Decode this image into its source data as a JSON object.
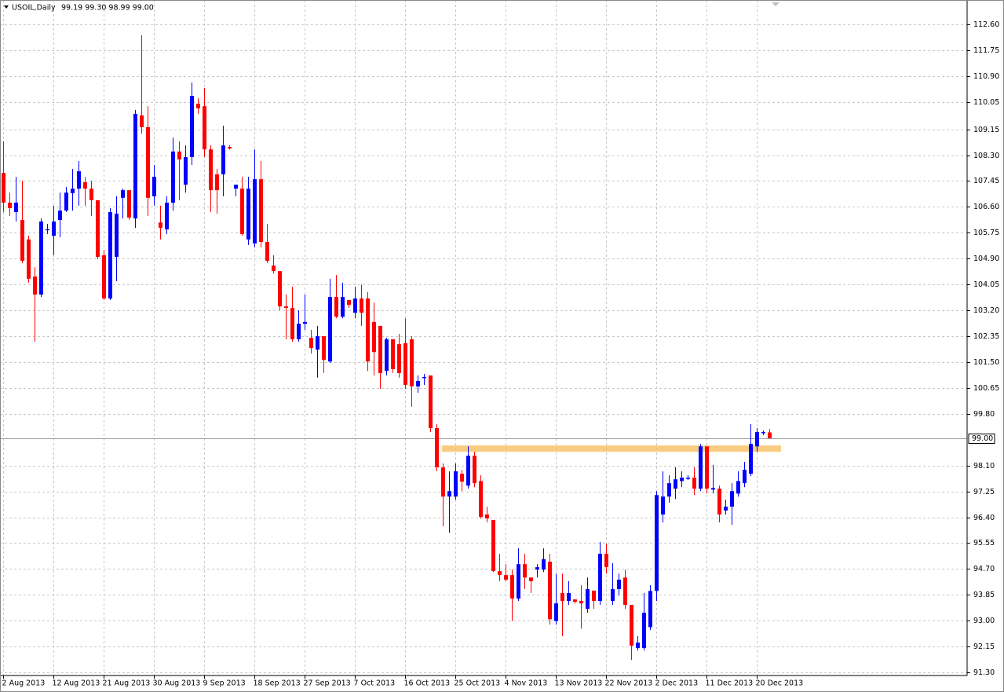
{
  "chart_data": {
    "type": "candlestick",
    "title": "USOIL,Daily",
    "ohlc_label": "99.19 99.30 98.99 99.00",
    "categories": [
      "2 Aug 2013",
      null,
      null,
      null,
      null,
      null,
      null,
      null,
      "12 Aug 2013",
      null,
      null,
      null,
      null,
      null,
      null,
      null,
      "21 Aug 2013",
      null,
      null,
      null,
      null,
      null,
      null,
      null,
      "30 Aug 2013",
      null,
      null,
      null,
      null,
      null,
      null,
      null,
      "9 Sep 2013",
      null,
      null,
      null,
      null,
      null,
      null,
      null,
      "18 Sep 2013",
      null,
      null,
      null,
      null,
      null,
      null,
      null,
      "27 Sep 2013",
      null,
      null,
      null,
      null,
      null,
      null,
      null,
      "7 Oct 2013",
      null,
      null,
      null,
      null,
      null,
      null,
      null,
      "16 Oct 2013",
      null,
      null,
      null,
      null,
      null,
      null,
      null,
      "25 Oct 2013",
      null,
      null,
      null,
      null,
      null,
      null,
      null,
      "4 Nov 2013",
      null,
      null,
      null,
      null,
      null,
      null,
      null,
      "13 Nov 2013",
      null,
      null,
      null,
      null,
      null,
      null,
      null,
      "22 Nov 2013",
      null,
      null,
      null,
      null,
      null,
      null,
      null,
      "2 Dec 2013",
      null,
      null,
      null,
      null,
      null,
      null,
      null,
      "11 Dec 2013",
      null,
      null,
      null,
      null,
      null,
      null,
      null,
      "20 Dec 2013",
      null,
      null
    ],
    "open": [
      107.72,
      106.74,
      106.43,
      106.17,
      105.53,
      104.31,
      103.72,
      105.84,
      105.65,
      106.17,
      106.48,
      107.05,
      107.2,
      107.41,
      107.2,
      106.82,
      105.01,
      103.59,
      104.96,
      106.9,
      107.15,
      106.22,
      109.61,
      109.22,
      106.95,
      106.09,
      105.86,
      106.74,
      108.42,
      107.33,
      108.24,
      109.99,
      109.91,
      108.49,
      107.67,
      107.67,
      108.57,
      107.2,
      107.2,
      105.53,
      105.4,
      107.51,
      105.45,
      104.67,
      104.49,
      103.33,
      103.28,
      102.25,
      102.76,
      102.3,
      101.91,
      102.35,
      101.52,
      103.64,
      102.99,
      103.54,
      103.12,
      103.59,
      103.59,
      102.82,
      102.69,
      101.21,
      102.25,
      102.09,
      102.12,
      102.25,
      100.7,
      100.98,
      101.06,
      99.33,
      98.04,
      97.08,
      97.08,
      97.83,
      97.44,
      98.42,
      97.59,
      96.49,
      96.31,
      94.63,
      94.5,
      94.5,
      93.73,
      94.86,
      94.42,
      94.68,
      94.68,
      94.94,
      92.99,
      93.91,
      93.65,
      93.7,
      93.65,
      93.39,
      93.99,
      93.65,
      95.2,
      93.65,
      94.04,
      94.42,
      93.52,
      92.1,
      92.1,
      92.79,
      93.98,
      96.49,
      97.08,
      97.34,
      97.59,
      97.68,
      97.7,
      97.34,
      98.73,
      97.31,
      97.34,
      96.62,
      96.75,
      97.18,
      97.52,
      97.83,
      98.73,
      99.18,
      99.19
    ],
    "high": [
      108.75,
      107.07,
      107.59,
      107.46,
      105.65,
      104.62,
      106.22,
      106.04,
      106.64,
      107.07,
      107.26,
      107.85,
      108.11,
      107.59,
      107.46,
      106.82,
      105.19,
      106.56,
      106.95,
      107.2,
      107.15,
      109.79,
      112.24,
      109.91,
      107.98,
      106.64,
      106.95,
      108.88,
      108.75,
      108.62,
      110.69,
      110.17,
      110.51,
      108.62,
      107.85,
      109.27,
      108.62,
      107.33,
      107.59,
      107.59,
      108.49,
      108.11,
      106.04,
      105.01,
      104.49,
      103.72,
      103.98,
      103.2,
      103.72,
      102.56,
      102.69,
      102.35,
      104.24,
      104.36,
      104.11,
      103.54,
      103.98,
      104.05,
      103.8,
      103.46,
      102.69,
      102.3,
      102.25,
      102.43,
      102.94,
      102.35,
      101.06,
      101.11,
      101.06,
      99.46,
      98.17,
      97.91,
      98.17,
      97.96,
      98.73,
      98.55,
      97.78,
      96.75,
      96.31,
      95.2,
      94.86,
      94.68,
      95.38,
      95.2,
      94.42,
      94.86,
      95.38,
      95.2,
      94.55,
      94.55,
      94.3,
      93.7,
      94.17,
      94.42,
      93.99,
      95.59,
      95.53,
      94.89,
      94.55,
      94.68,
      93.52,
      92.49,
      93.91,
      94.17,
      97.26,
      97.91,
      97.78,
      98.04,
      97.91,
      97.78,
      98.04,
      98.81,
      98.73,
      98.12,
      97.44,
      96.98,
      97.52,
      97.91,
      98.22,
      99.46,
      99.33,
      99.25,
      99.3
    ],
    "low": [
      106.43,
      106.3,
      106.12,
      104.75,
      104.11,
      102.17,
      103.64,
      105.71,
      105.01,
      105.6,
      106.43,
      106.48,
      106.64,
      106.64,
      106.3,
      104.88,
      103.54,
      103.54,
      104.16,
      106.22,
      106.17,
      105.91,
      109.01,
      106.3,
      106.64,
      105.53,
      105.71,
      106.48,
      106.82,
      107.07,
      107.98,
      109.66,
      108.24,
      106.43,
      106.38,
      106.95,
      108.49,
      106.95,
      105.65,
      105.35,
      105.27,
      105.27,
      104.75,
      104.41,
      103.2,
      102.25,
      102.17,
      102.17,
      102.56,
      101.78,
      100.99,
      101.14,
      101.47,
      102.94,
      102.94,
      103.28,
      102.94,
      102.69,
      101.21,
      101.06,
      100.62,
      101.06,
      101.14,
      100.99,
      100.62,
      100.03,
      100.49,
      100.75,
      99.2,
      97.91,
      96.1,
      95.89,
      96.98,
      97.26,
      97.34,
      97.39,
      96.36,
      96.23,
      94.6,
      94.3,
      94.3,
      92.99,
      93.65,
      94.04,
      93.91,
      94.42,
      94.6,
      92.87,
      92.87,
      92.49,
      93.52,
      93.57,
      92.74,
      93.26,
      93.39,
      93.52,
      94.55,
      93.52,
      93.83,
      93.39,
      91.71,
      92.02,
      92.02,
      92.69,
      93.65,
      96.23,
      96.88,
      97.0,
      97.39,
      97.62,
      97.13,
      97.26,
      97.18,
      97.18,
      96.23,
      96.49,
      96.15,
      97.08,
      97.39,
      97.75,
      98.55,
      99.1,
      98.99
    ],
    "close": [
      106.74,
      106.56,
      106.74,
      104.83,
      104.24,
      103.72,
      106.12,
      105.87,
      106.12,
      106.48,
      107.07,
      107.2,
      107.77,
      107.2,
      106.82,
      104.96,
      103.59,
      106.43,
      106.38,
      107.15,
      106.25,
      109.66,
      109.22,
      106.9,
      107.59,
      105.91,
      106.74,
      108.42,
      108.16,
      108.24,
      110.25,
      109.84,
      108.49,
      107.15,
      107.15,
      108.62,
      108.52,
      107.33,
      105.71,
      107.2,
      107.51,
      105.45,
      104.83,
      104.49,
      103.33,
      103.28,
      102.25,
      102.76,
      102.82,
      101.96,
      102.35,
      101.57,
      103.64,
      102.99,
      103.64,
      103.38,
      103.59,
      103.12,
      101.52,
      101.83,
      101.14,
      102.25,
      101.27,
      101.14,
      100.75,
      100.7,
      100.88,
      101.01,
      99.33,
      98.04,
      97.08,
      97.26,
      97.91,
      97.57,
      98.42,
      97.52,
      96.41,
      96.36,
      94.63,
      94.5,
      94.35,
      93.73,
      94.86,
      94.42,
      94.3,
      94.76,
      95.02,
      93.05,
      93.57,
      93.65,
      93.91,
      93.62,
      93.57,
      94.04,
      93.65,
      95.2,
      94.76,
      94.04,
      94.35,
      93.52,
      92.18,
      92.28,
      93.26,
      93.98,
      97.13,
      97.08,
      97.52,
      97.65,
      97.7,
      97.7,
      97.34,
      98.73,
      97.34,
      97.36,
      96.49,
      96.75,
      97.26,
      97.59,
      97.96,
      98.81,
      99.2,
      99.2,
      99.0
    ],
    "up_color": "#0000ff",
    "down_color": "#ff0000",
    "ylim": [
      91.2,
      113.4
    ],
    "yticks": [
      {
        "value": 112.6,
        "label": "112.60"
      },
      111.75,
      {
        "value": 110.9,
        "label": "110.90"
      },
      110.05,
      109.15,
      {
        "value": 108.3,
        "label": "108.30"
      },
      107.45,
      {
        "value": 106.6,
        "label": "106.60"
      },
      105.75,
      {
        "value": 104.9,
        "label": "104.90"
      },
      104.05,
      {
        "value": 103.2,
        "label": "103.20"
      },
      102.35,
      {
        "value": 101.5,
        "label": "101.50"
      },
      100.65,
      {
        "value": 99.8,
        "label": "99.80"
      },
      {
        "value": 98.1,
        "label": "98.10"
      },
      97.25,
      {
        "value": 96.4,
        "label": "96.40"
      },
      95.55,
      {
        "value": 94.7,
        "label": "94.70"
      },
      93.85,
      {
        "value": 93,
        "label": "93.00"
      },
      92.15,
      {
        "value": 91.3,
        "label": "91.30"
      }
    ],
    "last_price": {
      "value": 99,
      "label": "99.00"
    },
    "zone": {
      "low": 98.55,
      "high": 98.76,
      "color": "#f7c46c"
    },
    "grid": true
  }
}
